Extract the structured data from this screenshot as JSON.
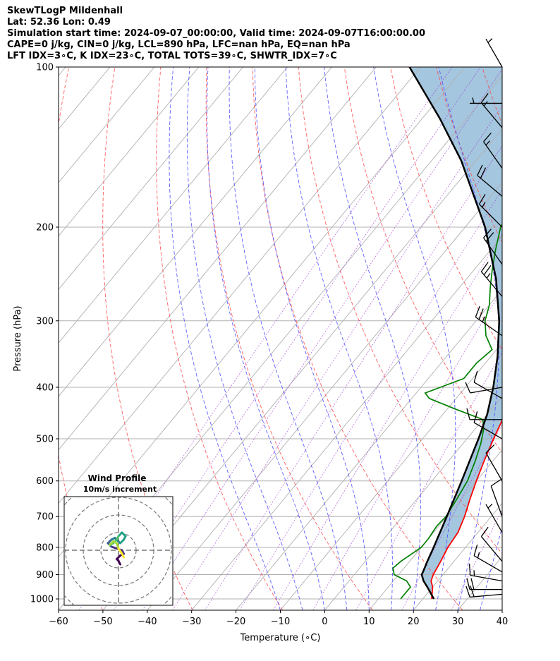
{
  "header": {
    "title": "SkewTLogP Mildenhall",
    "location": "Lat: 52.36   Lon: 0.49",
    "times": "Simulation start time: 2024-09-07_00:00:00, Valid time: 2024-09-07T16:00:00.00",
    "params": "CAPE=0 j/kg, CIN=0 j/kg, LCL=890 hPa, LFC=nan hPa, EQ=nan hPa",
    "indices": "LFT IDX=3∘C, K IDX=23∘C, TOTAL TOTS=39∘C, SHWTR_IDX=7∘C"
  },
  "chart_data": {
    "type": "skewt",
    "xlabel": "Temperature (∘C)",
    "ylabel": "Pressure (hPa)",
    "xlim": [
      -60,
      40
    ],
    "ylim": [
      1050,
      100
    ],
    "log_y": true,
    "x_ticks": [
      "−60",
      "−50",
      "−40",
      "−30",
      "−20",
      "−10",
      "0",
      "10",
      "20",
      "30",
      "40"
    ],
    "y_ticks": [
      "1000",
      "900",
      "800",
      "700",
      "600",
      "500",
      "400",
      "300",
      "200",
      "100"
    ],
    "grid": true,
    "temperature": {
      "color": "#ff0000",
      "points": [
        [
          1000,
          22
        ],
        [
          950,
          20
        ],
        [
          925,
          18.5
        ],
        [
          900,
          17.8
        ],
        [
          850,
          17
        ],
        [
          800,
          16
        ],
        [
          750,
          15.5
        ],
        [
          700,
          14
        ],
        [
          650,
          12
        ],
        [
          600,
          10
        ],
        [
          550,
          8
        ],
        [
          500,
          6
        ],
        [
          450,
          4
        ],
        [
          420,
          2.5
        ],
        [
          400,
          0
        ],
        [
          370,
          -3
        ],
        [
          350,
          -6
        ],
        [
          320,
          -10
        ],
        [
          300,
          -12
        ],
        [
          270,
          -15
        ],
        [
          250,
          -19
        ],
        [
          230,
          -24
        ],
        [
          215,
          -24
        ],
        [
          200,
          -26
        ],
        [
          185,
          -31
        ],
        [
          170,
          -36
        ],
        [
          150,
          -37
        ],
        [
          135,
          -38
        ],
        [
          120,
          -38
        ],
        [
          100,
          -38
        ]
      ]
    },
    "dewpoint": {
      "color": "#008000",
      "points": [
        [
          1000,
          15
        ],
        [
          950,
          15
        ],
        [
          925,
          13
        ],
        [
          900,
          9
        ],
        [
          875,
          7.5
        ],
        [
          850,
          8
        ],
        [
          800,
          10
        ],
        [
          770,
          10
        ],
        [
          730,
          9.5
        ],
        [
          700,
          9.8
        ],
        [
          650,
          9
        ],
        [
          600,
          8
        ],
        [
          550,
          6
        ],
        [
          510,
          4
        ],
        [
          480,
          2
        ],
        [
          460,
          0
        ],
        [
          440,
          -8
        ],
        [
          420,
          -16
        ],
        [
          410,
          -18
        ],
        [
          385,
          -12
        ],
        [
          360,
          -12
        ],
        [
          340,
          -11
        ],
        [
          320,
          -15
        ],
        [
          300,
          -18
        ],
        [
          280,
          -20
        ],
        [
          260,
          -23
        ],
        [
          240,
          -26
        ],
        [
          220,
          -29
        ],
        [
          200,
          -32
        ],
        [
          185,
          -33
        ],
        [
          170,
          -35
        ],
        [
          160,
          -37
        ],
        [
          150,
          -39
        ],
        [
          140,
          -42
        ],
        [
          128,
          -47
        ],
        [
          115,
          -50
        ],
        [
          105,
          -51
        ],
        [
          100,
          -52
        ]
      ]
    },
    "parcel": {
      "color": "#000000",
      "points": [
        [
          1000,
          22.5
        ],
        [
          950,
          18.8
        ],
        [
          925,
          16.8
        ],
        [
          900,
          15.2
        ],
        [
          890,
          15
        ],
        [
          850,
          14
        ],
        [
          800,
          12.8
        ],
        [
          700,
          10
        ],
        [
          600,
          6.7
        ],
        [
          500,
          2.6
        ],
        [
          450,
          0
        ],
        [
          400,
          -3.7
        ],
        [
          350,
          -8.5
        ],
        [
          300,
          -14.8
        ],
        [
          250,
          -23.4
        ],
        [
          200,
          -35.5
        ],
        [
          150,
          -53.3
        ],
        [
          125,
          -66
        ],
        [
          100,
          -82.5
        ]
      ]
    },
    "fill_color": "#a4c6df",
    "dry_adiabat_thetas_K": [
      200,
      220,
      240,
      260,
      280,
      300,
      320,
      340,
      360,
      380,
      400,
      420,
      440,
      460,
      480
    ],
    "moist_adiabat_start_C": [
      -10,
      -5,
      0,
      5,
      10,
      15,
      20,
      25,
      30,
      35,
      40,
      45
    ],
    "mixing_ratio_g_kg": [
      0.02,
      0.05,
      0.1,
      0.2,
      0.4,
      0.8,
      1.5,
      3,
      6,
      12,
      24,
      48
    ],
    "wind_barbs": [
      {
        "p": 980,
        "speed": 20,
        "dir": 265
      },
      {
        "p": 960,
        "speed": 20,
        "dir": 270
      },
      {
        "p": 925,
        "speed": 15,
        "dir": 280
      },
      {
        "p": 890,
        "speed": 15,
        "dir": 300
      },
      {
        "p": 850,
        "speed": 10,
        "dir": 320
      },
      {
        "p": 750,
        "speed": 5,
        "dir": 330
      },
      {
        "p": 700,
        "speed": 10,
        "dir": 340
      },
      {
        "p": 600,
        "speed": 10,
        "dir": 330
      },
      {
        "p": 500,
        "speed": 10,
        "dir": 300
      },
      {
        "p": 460,
        "speed": 10,
        "dir": 270
      },
      {
        "p": 420,
        "speed": 10,
        "dir": 300
      },
      {
        "p": 400,
        "speed": 10,
        "dir": 260
      },
      {
        "p": 320,
        "speed": 25,
        "dir": 305
      },
      {
        "p": 270,
        "speed": 25,
        "dir": 320
      },
      {
        "p": 235,
        "speed": 20,
        "dir": 325
      },
      {
        "p": 200,
        "speed": 15,
        "dir": 315
      },
      {
        "p": 175,
        "speed": 20,
        "dir": 310
      },
      {
        "p": 155,
        "speed": 15,
        "dir": 325
      },
      {
        "p": 130,
        "speed": 15,
        "dir": 320
      },
      {
        "p": 117,
        "speed": 5,
        "dir": 270
      },
      {
        "p": 100,
        "speed": 5,
        "dir": 330
      }
    ],
    "hodograph": {
      "title": "Wind Profile",
      "subtitle": "10m/s increment",
      "ring_step_ms": 10,
      "points": [
        [
          1,
          -8
        ],
        [
          0,
          -6
        ],
        [
          -1,
          -5
        ],
        [
          1,
          -3
        ],
        [
          3,
          -2
        ],
        [
          2,
          0
        ],
        [
          -1,
          1
        ],
        [
          -4,
          2
        ],
        [
          -5,
          3
        ],
        [
          -6,
          4
        ],
        [
          -4,
          6
        ],
        [
          -2,
          7
        ],
        [
          0,
          5
        ],
        [
          1,
          4
        ],
        [
          3,
          6
        ],
        [
          4,
          8
        ],
        [
          2,
          10
        ],
        [
          0,
          8
        ],
        [
          -1,
          6
        ],
        [
          -3,
          4
        ],
        [
          -5,
          3
        ],
        [
          -3,
          5
        ],
        [
          -1,
          4
        ],
        [
          0,
          1
        ],
        [
          2,
          -2
        ],
        [
          3,
          -4
        ]
      ]
    }
  }
}
